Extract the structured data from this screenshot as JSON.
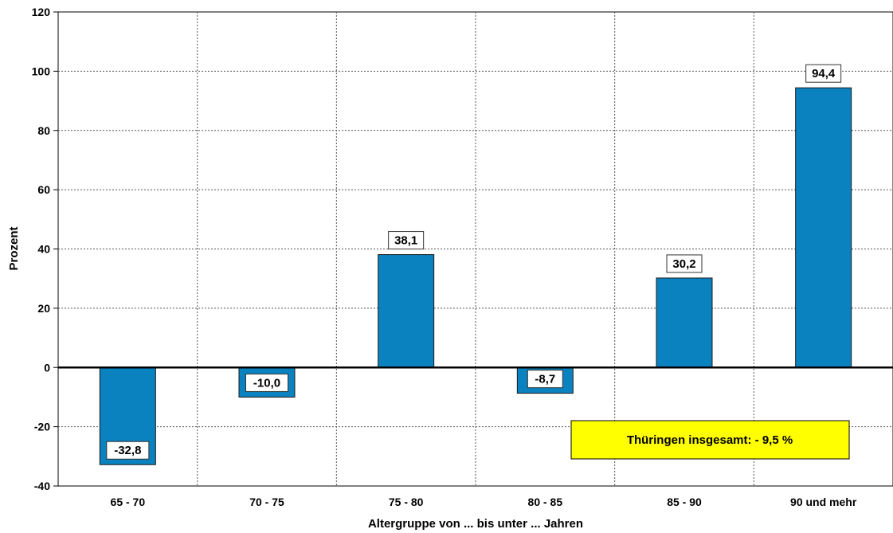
{
  "chart_data": {
    "type": "bar",
    "categories": [
      "65 - 70",
      "70 - 75",
      "75 - 80",
      "80 - 85",
      "85 - 90",
      "90 und mehr"
    ],
    "values": [
      -32.8,
      -10.0,
      38.1,
      -8.7,
      30.2,
      94.4
    ],
    "data_labels": [
      "-32,8",
      "-10,0",
      "38,1",
      "-8,7",
      "30,2",
      "94,4"
    ],
    "title": "",
    "xlabel": "Altergruppe von ... bis unter ... Jahren",
    "ylabel": "Prozent",
    "ylim": [
      -40,
      120
    ],
    "yticks": [
      -40,
      -20,
      0,
      20,
      40,
      60,
      80,
      100,
      120
    ],
    "grid": true,
    "grid_style": "dashed",
    "bar_color": "#0a82bf",
    "annotation": {
      "text": "Thüringen insgesamt: - 9,5 %",
      "background": "#ffff00"
    }
  }
}
